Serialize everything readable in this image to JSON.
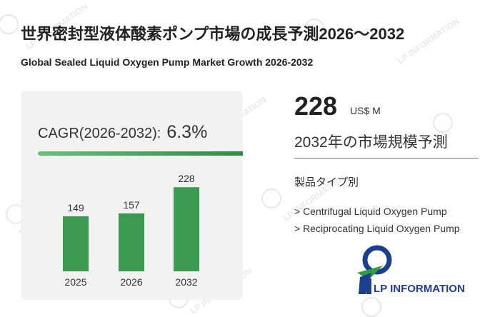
{
  "header": {
    "title_jp": "世界密封型液体酸素ポンプ市場の成長予測2026～2032",
    "title_en": "Global Sealed Liquid Oxygen Pump Market Growth 2026-2032"
  },
  "cagr": {
    "label": "CAGR(2026-2032):",
    "value": "6.3%"
  },
  "chart_data": {
    "type": "bar",
    "categories": [
      "2025",
      "2026",
      "2032"
    ],
    "values": [
      149,
      157,
      228
    ],
    "ylim": [
      0,
      240
    ],
    "data_labels": [
      "149",
      "157",
      "228"
    ],
    "bar_color": "#3a9a4f"
  },
  "summary": {
    "value": "228",
    "unit": "US$ M",
    "label": "2032年の市場規模予測"
  },
  "segments": {
    "title": "製品タイプ別",
    "items": [
      "> Centrifugal Liquid Oxygen Pump",
      "> Reciprocating Liquid Oxygen Pump"
    ]
  },
  "logo": {
    "text": "LP INFORMATION",
    "color_text": "#1b3f8f",
    "color_green": "#2e9b46"
  },
  "watermark": {
    "text": "LP INFORMATION"
  }
}
